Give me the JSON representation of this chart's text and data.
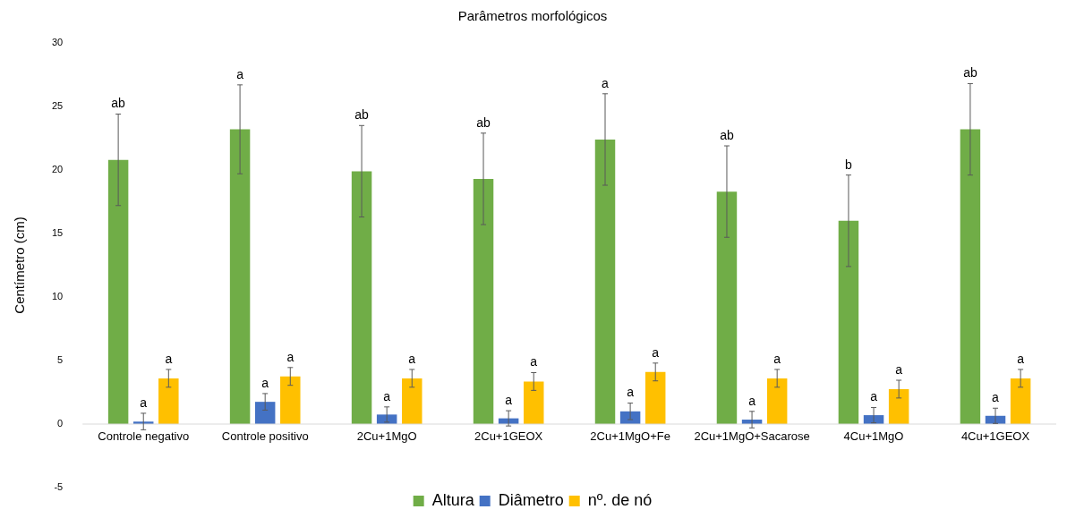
{
  "chart_data": {
    "type": "bar",
    "title": "Parâmetros morfológicos",
    "ylabel": "Centímetro (cm)",
    "categories": [
      "Controle negativo",
      "Controle positivo",
      "2Cu+1MgO",
      "2Cu+1GEOX",
      "2Cu+1MgO+Fe",
      "2Cu+1MgO+Sacarose",
      "4Cu+1MgO",
      "4Cu+1GEOX"
    ],
    "series": [
      {
        "name": "Altura",
        "color": "#70ad47",
        "values": [
          20.8,
          23.2,
          19.9,
          19.3,
          22.4,
          18.3,
          16.0,
          23.2
        ],
        "errors": [
          3.6,
          3.5,
          3.6,
          3.6,
          3.6,
          3.6,
          3.6,
          3.6
        ]
      },
      {
        "name": "Diâmetro",
        "color": "#4472c4",
        "values": [
          0.2,
          1.75,
          0.75,
          0.45,
          1.0,
          0.35,
          0.7,
          0.65
        ],
        "errors": [
          0.65,
          0.65,
          0.6,
          0.6,
          0.65,
          0.65,
          0.6,
          0.6
        ]
      },
      {
        "name": "nº. de nó",
        "color": "#ffc000",
        "values": [
          3.6,
          3.75,
          3.6,
          3.35,
          4.1,
          3.6,
          2.75,
          3.6
        ],
        "errors": [
          0.7,
          0.7,
          0.7,
          0.7,
          0.7,
          0.7,
          0.7,
          0.7
        ]
      }
    ],
    "annotations": [
      "ab",
      "a",
      "a",
      "a",
      "a",
      "a",
      "ab",
      "a",
      "a",
      "ab",
      "a",
      "a",
      "a",
      "a",
      "a",
      "ab",
      "a",
      "a",
      "b",
      "a",
      "a",
      "ab",
      "a",
      "a"
    ],
    "ylim": [
      -5,
      30
    ],
    "yticks": [
      -5,
      0,
      5,
      10,
      15,
      20,
      25,
      30
    ],
    "grid": false,
    "legend": "bottom"
  }
}
